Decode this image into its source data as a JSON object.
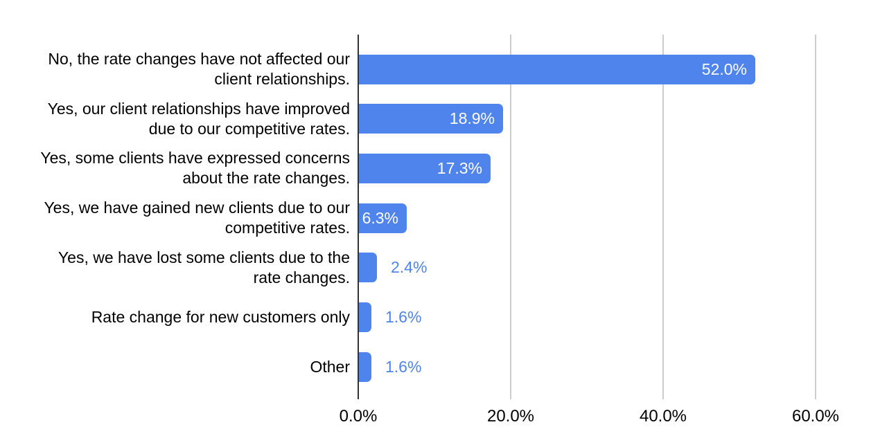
{
  "chart_data": {
    "type": "bar",
    "orientation": "horizontal",
    "title": "",
    "legend": "none",
    "background_color": "#ffffff",
    "bar_color": "#4f84ec",
    "grid_color": "#cccccc",
    "axis_color": "#333333",
    "category_text_color": "#000000",
    "tick_text_color": "#000000",
    "inside_label_color": "#ffffff",
    "outside_label_color": "#4f84ec",
    "categories": [
      {
        "lines": [
          "No, the rate changes have not affected our",
          "client relationships."
        ]
      },
      {
        "lines": [
          "Yes, our client relationships have improved",
          "due to our competitive rates."
        ]
      },
      {
        "lines": [
          "Yes, some clients have expressed concerns",
          "about the rate changes."
        ]
      },
      {
        "lines": [
          "Yes, we have gained new clients due to our",
          "competitive rates."
        ]
      },
      {
        "lines": [
          "Yes, we have lost some clients due to the",
          "rate changes."
        ]
      },
      {
        "lines": [
          "Rate change for new customers only"
        ]
      },
      {
        "lines": [
          "Other"
        ]
      }
    ],
    "values": [
      52.0,
      18.9,
      17.3,
      6.3,
      2.4,
      1.6,
      1.6
    ],
    "value_labels": [
      "52.0%",
      "18.9%",
      "17.3%",
      "6.3%",
      "2.4%",
      "1.6%",
      "1.6%"
    ],
    "value_label_placement": [
      "inside",
      "inside",
      "inside",
      "inside",
      "outside",
      "outside",
      "outside"
    ],
    "x_axis": {
      "ticks": [
        {
          "value": 0,
          "label": "0.0%"
        },
        {
          "value": 20,
          "label": "20.0%"
        },
        {
          "value": 40,
          "label": "40.0%"
        },
        {
          "value": 60,
          "label": "60.0%"
        }
      ],
      "range": [
        0,
        66
      ],
      "grid": true
    }
  }
}
